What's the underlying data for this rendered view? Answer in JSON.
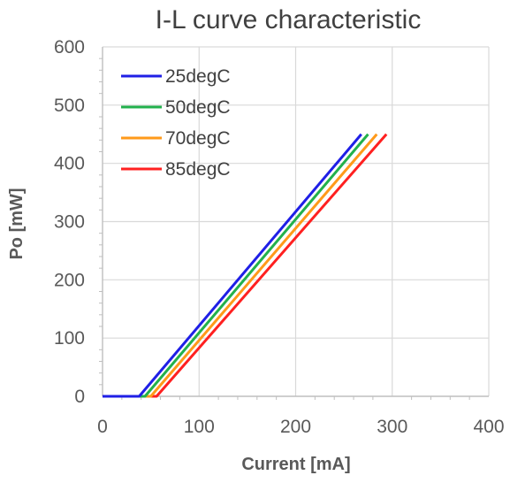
{
  "chart_data": {
    "type": "line",
    "title": "I-L curve characteristic",
    "xlabel": "Current [mA]",
    "ylabel": "Po [mW]",
    "xlim": [
      0,
      400
    ],
    "ylim": [
      0,
      600
    ],
    "x_ticks": [
      "0",
      "100",
      "200",
      "300",
      "400"
    ],
    "y_ticks": [
      "0",
      "100",
      "200",
      "300",
      "400",
      "500",
      "600"
    ],
    "grid": true,
    "legend_position": "top-left",
    "series": [
      {
        "name": "25degC",
        "color": "#1f1fe6",
        "x": [
          0,
          38,
          268
        ],
        "y": [
          0,
          0,
          450
        ]
      },
      {
        "name": "50degC",
        "color": "#22b14c",
        "x": [
          0,
          44,
          275
        ],
        "y": [
          0,
          0,
          450
        ]
      },
      {
        "name": "70degC",
        "color": "#ff9a1a",
        "x": [
          0,
          50,
          284
        ],
        "y": [
          0,
          0,
          450
        ]
      },
      {
        "name": "85degC",
        "color": "#ff2020",
        "x": [
          0,
          56,
          294
        ],
        "y": [
          0,
          0,
          450
        ]
      }
    ]
  }
}
